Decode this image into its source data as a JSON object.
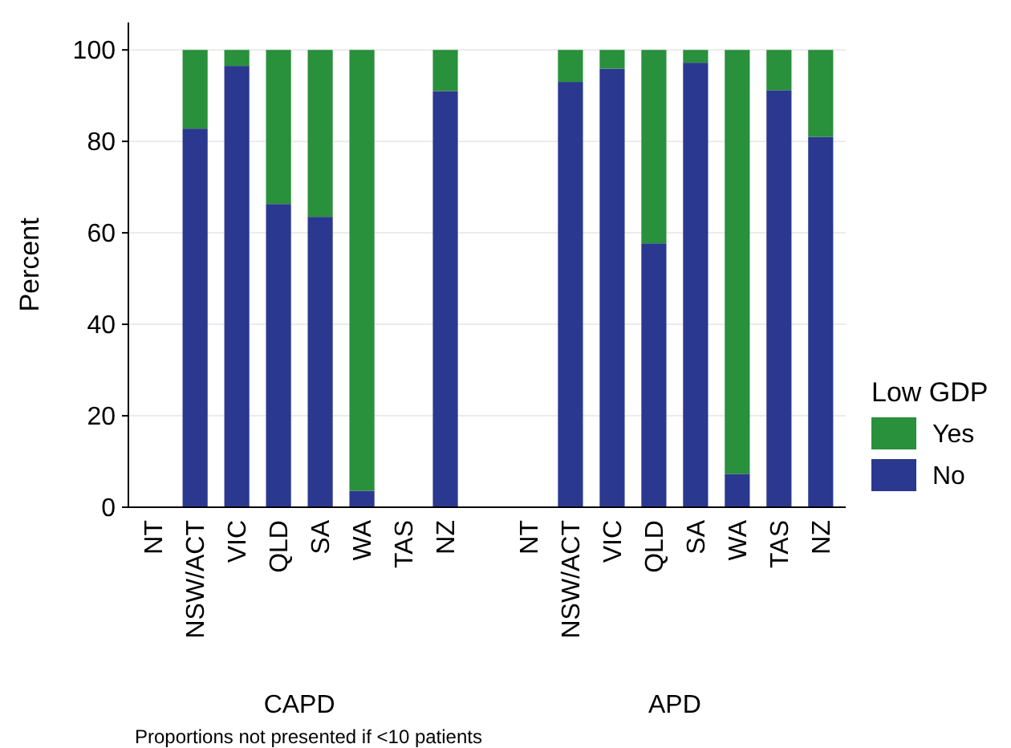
{
  "chart_data": {
    "type": "bar",
    "stacked": true,
    "ylabel": "Percent",
    "legend_title": "Low GDP",
    "legend": "right",
    "categories": [
      "NT",
      "NSW/ACT",
      "VIC",
      "QLD",
      "SA",
      "WA",
      "TAS",
      "NZ",
      "NT",
      "NSW/ACT",
      "VIC",
      "QLD",
      "SA",
      "WA",
      "TAS",
      "NZ"
    ],
    "series": [
      {
        "name": "No",
        "color": "#2b388f",
        "values": [
          null,
          82.8,
          96.5,
          66.3,
          63.5,
          3.6,
          null,
          91,
          null,
          93,
          95.9,
          57.7,
          97.2,
          7.3,
          91.2,
          81
        ]
      },
      {
        "name": "Yes",
        "color": "#29903b",
        "values": [
          null,
          17.2,
          3.5,
          33.7,
          36.5,
          96.4,
          null,
          9,
          null,
          7,
          4.1,
          42.3,
          2.8,
          92.7,
          8.8,
          19
        ]
      }
    ],
    "ylim": [
      0,
      106
    ],
    "yticks": [
      0,
      20,
      40,
      60,
      80,
      100
    ],
    "grid": "y",
    "annotations": [
      {
        "text": "CAPD"
      },
      {
        "text": "APD"
      },
      {
        "text": "Proportions not presented if <10 patients"
      }
    ]
  }
}
